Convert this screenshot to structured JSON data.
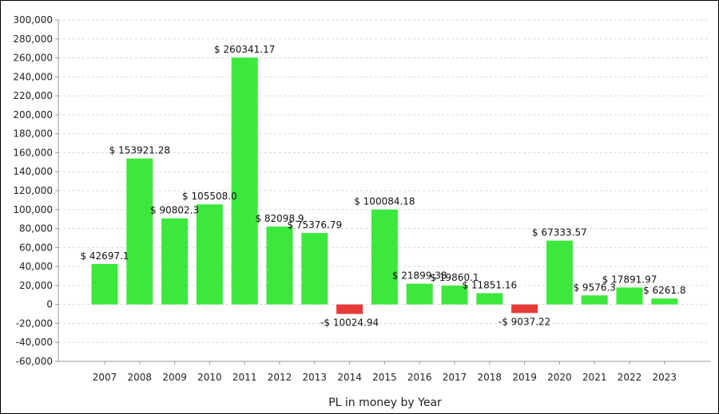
{
  "chart_data": {
    "type": "bar",
    "xlabel": "PL in money by Year",
    "ylabel": "",
    "ylim": [
      -60000,
      300000
    ],
    "y_ticks": [
      "300,000",
      "280,000",
      "260,000",
      "240,000",
      "220,000",
      "200,000",
      "180,000",
      "160,000",
      "140,000",
      "120,000",
      "100,000",
      "80,000",
      "60,000",
      "40,000",
      "20,000",
      "0",
      "-20,000",
      "-40,000",
      "-60,000"
    ],
    "y_tick_values": [
      300000,
      280000,
      260000,
      240000,
      220000,
      200000,
      180000,
      160000,
      140000,
      120000,
      100000,
      80000,
      60000,
      40000,
      20000,
      0,
      -20000,
      -40000,
      -60000
    ],
    "grid": true,
    "categories": [
      "2007",
      "2008",
      "2009",
      "2010",
      "2011",
      "2012",
      "2013",
      "2014",
      "2015",
      "2016",
      "2017",
      "2018",
      "2019",
      "2020",
      "2021",
      "2022",
      "2023"
    ],
    "values": [
      42697.1,
      153921.28,
      90802.3,
      105508.0,
      260341.17,
      82098.9,
      75376.79,
      -10024.94,
      100084.18,
      21899.38,
      19860.1,
      11851.16,
      -9037.22,
      67333.57,
      9576.3,
      17891.97,
      6261.8
    ],
    "data_labels": [
      "$ 42697.1",
      "$ 153921.28",
      "$ 90802.3",
      "$ 105508.0",
      "$ 260341.17",
      "$ 82098.9",
      "$ 75376.79",
      "-$ 10024.94",
      "$ 100084.18",
      "$ 21899.38",
      "$ 19860.1",
      "$ 11851.16",
      "-$ 9037.22",
      "$ 67333.57",
      "$ 9576.3",
      "$ 17891.97",
      "$ 6261.8"
    ],
    "colors": {
      "positive": "#3de83d",
      "negative": "#e63a3a",
      "grid": "#d8d8d8",
      "axis": "#999999"
    }
  }
}
